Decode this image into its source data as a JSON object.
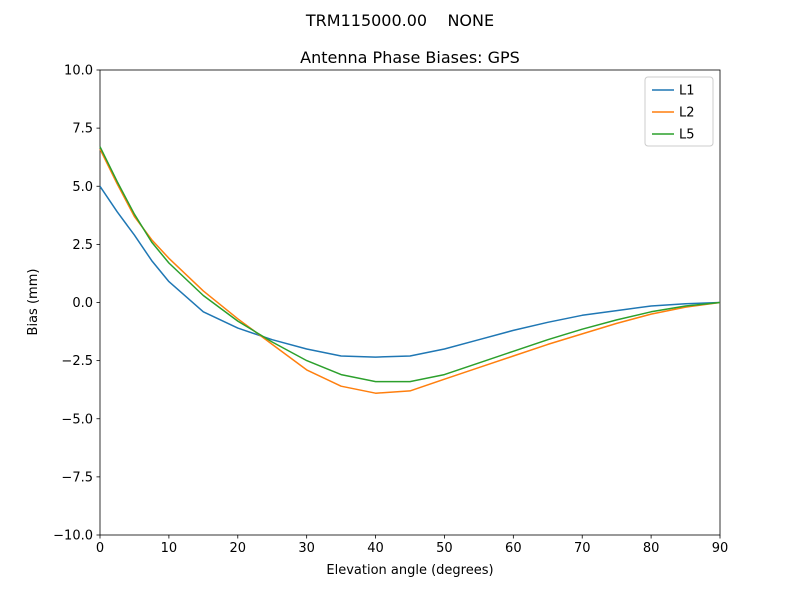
{
  "figure": {
    "suptitle": "TRM115000.00    NONE"
  },
  "chart_data": {
    "type": "line",
    "title": "Antenna Phase Biases: GPS",
    "xlabel": "Elevation angle (degrees)",
    "ylabel": "Bias (mm)",
    "xlim": [
      0,
      90
    ],
    "ylim": [
      -10,
      10
    ],
    "grid": false,
    "legend": {
      "visible": true,
      "location": "upper right"
    },
    "xticks": {
      "values": [
        0,
        10,
        20,
        30,
        40,
        50,
        60,
        70,
        80,
        90
      ],
      "labels": [
        "0",
        "10",
        "20",
        "30",
        "40",
        "50",
        "60",
        "70",
        "80",
        "90"
      ]
    },
    "yticks": {
      "values": [
        -10,
        -7.5,
        -5,
        -2.5,
        0,
        2.5,
        5,
        7.5,
        10
      ],
      "labels": [
        "−10.0",
        "−7.5",
        "−5.0",
        "−2.5",
        "0.0",
        "2.5",
        "5.0",
        "7.5",
        "10.0"
      ]
    },
    "x": [
      0,
      2.5,
      5,
      7.5,
      10,
      15,
      20,
      25,
      30,
      35,
      40,
      45,
      50,
      55,
      60,
      65,
      70,
      75,
      80,
      85,
      90
    ],
    "series": [
      {
        "name": "L1",
        "color": "#1f77b4",
        "values": [
          5.0,
          3.9,
          2.9,
          1.8,
          0.9,
          -0.4,
          -1.1,
          -1.6,
          -2.0,
          -2.3,
          -2.35,
          -2.3,
          -2.0,
          -1.6,
          -1.2,
          -0.85,
          -0.55,
          -0.35,
          -0.15,
          -0.05,
          0.0
        ]
      },
      {
        "name": "L2",
        "color": "#ff7f0e",
        "values": [
          6.6,
          5.1,
          3.7,
          2.7,
          1.9,
          0.5,
          -0.7,
          -1.8,
          -2.9,
          -3.6,
          -3.9,
          -3.8,
          -3.3,
          -2.8,
          -2.3,
          -1.8,
          -1.35,
          -0.9,
          -0.5,
          -0.2,
          0.0
        ]
      },
      {
        "name": "L5",
        "color": "#2ca02c",
        "values": [
          6.7,
          5.2,
          3.8,
          2.6,
          1.7,
          0.3,
          -0.8,
          -1.7,
          -2.5,
          -3.1,
          -3.4,
          -3.4,
          -3.1,
          -2.6,
          -2.1,
          -1.6,
          -1.15,
          -0.75,
          -0.4,
          -0.15,
          0.0
        ]
      }
    ]
  }
}
